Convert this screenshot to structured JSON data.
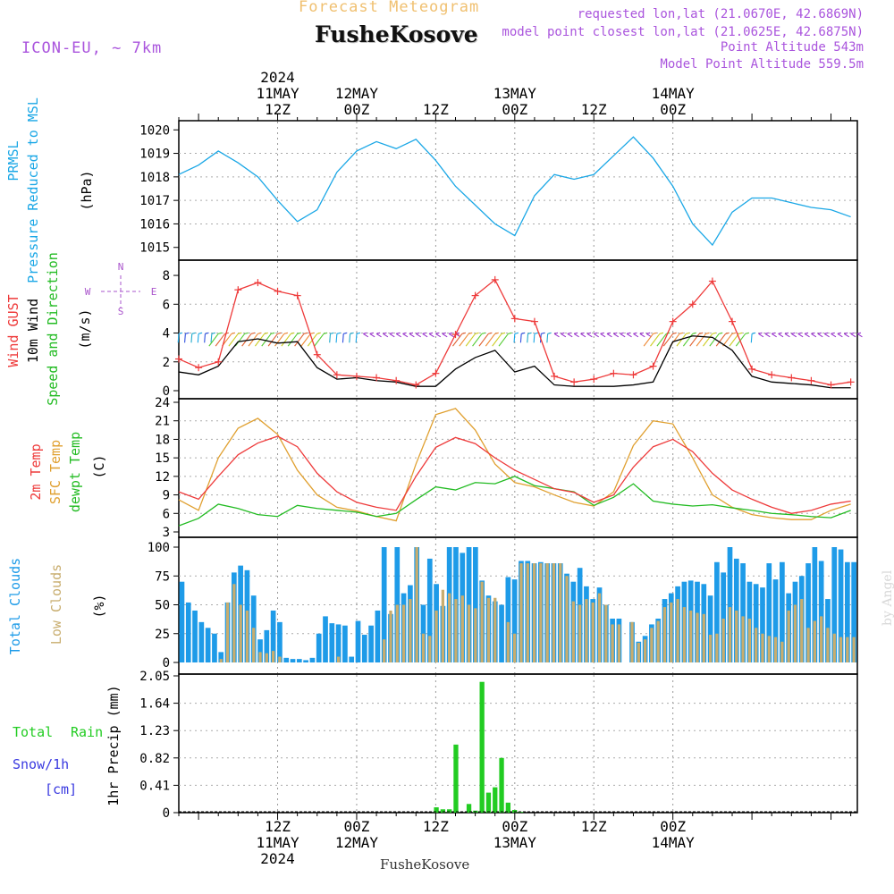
{
  "header": {
    "subtitle": "Forecast Meteogram",
    "title": "FusheKosove",
    "model": "ICON-EU, ~ 7km",
    "requested": "requested lon,lat (21.0670E, 42.6869N)",
    "closest": "model point closest lon,lat (21.0625E, 42.6875N)",
    "point_alt": "Point Altitude 543m",
    "model_alt": "Model Point Altitude 559.5m",
    "footer": "FusheKosove",
    "watermark": "by Angel"
  },
  "time_axis": {
    "top": [
      {
        "l1": "2024",
        "l2": "11MAY",
        "l3": "12Z"
      },
      {
        "l1": "",
        "l2": "12MAY",
        "l3": "00Z"
      },
      {
        "l1": "",
        "l2": "",
        "l3": "12Z"
      },
      {
        "l1": "",
        "l2": "13MAY",
        "l3": "00Z"
      },
      {
        "l1": "",
        "l2": "",
        "l3": "12Z"
      },
      {
        "l1": "",
        "l2": "14MAY",
        "l3": "00Z"
      }
    ],
    "bottom": [
      {
        "l1": "12Z",
        "l2": "11MAY",
        "l3": "2024"
      },
      {
        "l1": "00Z",
        "l2": "12MAY",
        "l3": ""
      },
      {
        "l1": "12Z",
        "l2": "",
        "l3": ""
      },
      {
        "l1": "00Z",
        "l2": "13MAY",
        "l3": ""
      },
      {
        "l1": "12Z",
        "l2": "",
        "l3": ""
      },
      {
        "l1": "00Z",
        "l2": "14MAY",
        "l3": ""
      }
    ]
  },
  "colors": {
    "pressure": "#1aa7e6",
    "gust": "#ee3a3a",
    "wind": "#000000",
    "dir": "#22bb22",
    "temp2m": "#ee3a3a",
    "sfc": "#e0a030",
    "dewpt": "#22bb22",
    "total_clouds": "#1e9be8",
    "low_clouds": "#c8ad6e",
    "rain": "#22cc22",
    "snow": "#3a3ae0",
    "compass": "#aa55cc",
    "header_purple": "#aa55dd",
    "subtitle": "#f0c070"
  },
  "chart_data": [
    {
      "type": "line",
      "panel": "pressure",
      "ylabel_lines": [
        "PRMSL",
        "Pressure Reduced to MSL"
      ],
      "unit": "(hPa)",
      "ylim": [
        1014.8,
        1020.2
      ],
      "ticks": [
        "1015",
        "1016",
        "1017",
        "1018",
        "1019",
        "1020"
      ],
      "grid": true,
      "series": [
        {
          "hours": [
            0,
            3,
            6,
            9,
            12,
            15,
            18,
            21,
            24,
            27,
            30,
            33,
            36,
            39,
            42,
            45,
            48,
            51,
            54,
            57,
            60,
            63,
            66,
            69,
            72,
            75,
            78,
            81,
            84,
            87,
            90,
            93,
            96,
            99,
            102
          ],
          "values": [
            1018.1,
            1018.5,
            1019.1,
            1018.6,
            1018.0,
            1017.0,
            1016.1,
            1016.6,
            1018.2,
            1019.1,
            1019.5,
            1019.2,
            1019.6,
            1018.7,
            1017.6,
            1016.8,
            1016.0,
            1015.5,
            1017.2,
            1018.1,
            1017.9,
            1018.1,
            1018.9,
            1019.7,
            1018.8,
            1017.6,
            1016.0,
            1015.1,
            1016.5,
            1017.1,
            1017.1,
            1016.9,
            1016.7,
            1016.6,
            1016.3
          ]
        }
      ]
    },
    {
      "type": "line",
      "panel": "wind",
      "ylabel_lines": [
        "Wind GUST",
        "10m Wind",
        "Speed and Direction"
      ],
      "unit": "(m/s)",
      "compass": {
        "n": "N",
        "s": "S",
        "w": "W",
        "e": "E"
      },
      "ylim": [
        0,
        8.5
      ],
      "ticks": [
        "0",
        "2",
        "4",
        "6",
        "8"
      ],
      "grid": true,
      "series": [
        {
          "hours": [
            0,
            3,
            6,
            9,
            12,
            15,
            18,
            21,
            24,
            27,
            30,
            33,
            36,
            39,
            42,
            45,
            48,
            51,
            54,
            57,
            60,
            63,
            66,
            69,
            72,
            75,
            78,
            81,
            84,
            87,
            90,
            93,
            96,
            99,
            102
          ],
          "values": [
            2.2,
            1.6,
            2.0,
            7.0,
            7.5,
            6.9,
            6.6,
            2.5,
            1.1,
            1.0,
            0.9,
            0.7,
            0.4,
            1.2,
            3.9,
            6.6,
            7.7,
            5.0,
            4.8,
            1.0,
            0.6,
            0.8,
            1.2,
            1.1,
            1.7,
            4.8,
            6.0,
            7.6,
            4.8,
            1.5,
            1.1,
            0.9,
            0.7,
            0.4,
            0.6
          ]
        },
        {
          "hours": [
            0,
            3,
            6,
            9,
            12,
            15,
            18,
            21,
            24,
            27,
            30,
            33,
            36,
            39,
            42,
            45,
            48,
            51,
            54,
            57,
            60,
            63,
            66,
            69,
            72,
            75,
            78,
            81,
            84,
            87,
            90,
            93,
            96,
            99,
            102
          ],
          "values": [
            1.3,
            1.1,
            1.7,
            3.4,
            3.6,
            3.3,
            3.4,
            1.6,
            0.8,
            0.9,
            0.7,
            0.6,
            0.3,
            0.3,
            1.5,
            2.3,
            2.8,
            1.3,
            1.7,
            0.4,
            0.3,
            0.3,
            0.3,
            0.4,
            0.6,
            3.4,
            3.8,
            3.7,
            2.8,
            1.0,
            0.6,
            0.5,
            0.4,
            0.2,
            0.2
          ]
        }
      ]
    },
    {
      "type": "line",
      "panel": "temperature",
      "ylabel_lines": [
        "2m Temp",
        "SFC Temp",
        "dewpt Temp"
      ],
      "unit": "(C)",
      "ylim": [
        3,
        24
      ],
      "ticks": [
        "3",
        "6",
        "9",
        "12",
        "15",
        "18",
        "21",
        "24"
      ],
      "grid": true,
      "series": [
        {
          "hours": [
            0,
            3,
            6,
            9,
            12,
            15,
            18,
            21,
            24,
            27,
            30,
            33,
            36,
            39,
            42,
            45,
            48,
            51,
            54,
            57,
            60,
            63,
            66,
            69,
            72,
            75,
            78,
            81,
            84,
            87,
            90,
            93,
            96,
            99,
            102
          ],
          "values": [
            9.5,
            8.3,
            12.0,
            15.5,
            17.4,
            18.5,
            16.8,
            12.5,
            9.5,
            7.8,
            7.0,
            6.5,
            12.0,
            16.7,
            18.3,
            17.3,
            15.0,
            13.0,
            11.5,
            10.0,
            9.4,
            7.8,
            9.0,
            13.5,
            16.8,
            18.0,
            16.0,
            12.5,
            9.8,
            8.3,
            7.0,
            6.0,
            6.5,
            7.5,
            8.0
          ]
        },
        {
          "hours": [
            0,
            3,
            6,
            9,
            12,
            15,
            18,
            21,
            24,
            27,
            30,
            33,
            36,
            39,
            42,
            45,
            48,
            51,
            54,
            57,
            60,
            63,
            66,
            69,
            72,
            75,
            78,
            81,
            84,
            87,
            90,
            93,
            96,
            99,
            102
          ],
          "values": [
            8.2,
            6.5,
            15.0,
            19.8,
            21.4,
            18.8,
            13.0,
            9.0,
            7.0,
            6.4,
            5.5,
            4.8,
            14.0,
            22.0,
            23.0,
            19.5,
            14.0,
            11.0,
            10.3,
            9.0,
            7.8,
            7.2,
            9.5,
            17.0,
            21.0,
            20.5,
            15.0,
            9.0,
            7.0,
            5.8,
            5.3,
            5.0,
            5.0,
            6.5,
            7.5
          ]
        },
        {
          "hours": [
            0,
            3,
            6,
            9,
            12,
            15,
            18,
            21,
            24,
            27,
            30,
            33,
            36,
            39,
            42,
            45,
            48,
            51,
            54,
            57,
            60,
            63,
            66,
            69,
            72,
            75,
            78,
            81,
            84,
            87,
            90,
            93,
            96,
            99,
            102
          ],
          "values": [
            4.0,
            5.2,
            7.5,
            6.8,
            5.8,
            5.5,
            7.3,
            6.8,
            6.5,
            6.2,
            5.5,
            6.0,
            8.2,
            10.3,
            9.8,
            11.0,
            10.8,
            12.0,
            10.5,
            10.0,
            9.5,
            7.3,
            8.6,
            10.8,
            8.0,
            7.5,
            7.2,
            7.4,
            6.9,
            6.5,
            6.0,
            5.8,
            5.5,
            5.3,
            6.5
          ]
        }
      ]
    },
    {
      "type": "bar",
      "panel": "clouds",
      "ylabel_lines": [
        "Total Clouds",
        "Low Clouds"
      ],
      "unit": "(%)",
      "ylim": [
        0,
        100
      ],
      "ticks": [
        "0",
        "25",
        "50",
        "75",
        "100"
      ],
      "grid": true,
      "series": [
        {
          "hours": [
            0,
            1,
            2,
            3,
            4,
            5,
            6,
            7,
            8,
            9,
            10,
            11,
            12,
            13,
            14,
            15,
            16,
            17,
            18,
            19,
            20,
            21,
            22,
            23,
            24,
            25,
            26,
            27,
            28,
            29,
            30,
            31,
            32,
            33,
            34,
            35,
            36,
            37,
            38,
            39,
            40,
            41,
            42,
            43,
            44,
            45,
            46,
            47,
            48,
            49,
            50,
            51,
            52,
            53,
            54,
            55,
            56,
            57,
            58,
            59,
            60,
            61,
            62,
            63,
            64,
            65,
            66,
            67,
            68,
            69,
            70,
            71,
            72,
            73,
            74,
            75,
            76,
            77,
            78,
            79,
            80,
            81,
            82,
            83,
            84,
            85,
            86,
            87,
            88,
            89,
            90,
            91,
            92,
            93,
            94,
            95,
            96,
            97,
            98,
            99,
            100,
            101,
            102,
            103
          ],
          "values": [
            70,
            52,
            45,
            35,
            30,
            25,
            9,
            52,
            78,
            84,
            80,
            58,
            20,
            28,
            45,
            35,
            4,
            3,
            3,
            2,
            4,
            25,
            40,
            34,
            33,
            32,
            5,
            36,
            24,
            32,
            45,
            100,
            42,
            100,
            60,
            67,
            100,
            50,
            90,
            68,
            49,
            100,
            100,
            95,
            100,
            100,
            71,
            58,
            53,
            50,
            74,
            72,
            88,
            88,
            86,
            87,
            86,
            86,
            86,
            77,
            70,
            82,
            66,
            55,
            65,
            50,
            38,
            38,
            0,
            35,
            18,
            23,
            33,
            38,
            55,
            60,
            66,
            70,
            71,
            70,
            68,
            58,
            87,
            78,
            100,
            90,
            86,
            70,
            68,
            65,
            86,
            72,
            87,
            60,
            70,
            75,
            86,
            100,
            88,
            55,
            100,
            98,
            87,
            87
          ]
        },
        {
          "hours": [
            0,
            1,
            2,
            3,
            4,
            5,
            6,
            7,
            8,
            9,
            10,
            11,
            12,
            13,
            14,
            15,
            16,
            17,
            18,
            19,
            20,
            21,
            22,
            23,
            24,
            25,
            26,
            27,
            28,
            29,
            30,
            31,
            32,
            33,
            34,
            35,
            36,
            37,
            38,
            39,
            40,
            41,
            42,
            43,
            44,
            45,
            46,
            47,
            48,
            49,
            50,
            51,
            52,
            53,
            54,
            55,
            56,
            57,
            58,
            59,
            60,
            61,
            62,
            63,
            64,
            65,
            66,
            67,
            68,
            69,
            70,
            71,
            72,
            73,
            74,
            75,
            76,
            77,
            78,
            79,
            80,
            81,
            82,
            83,
            84,
            85,
            86,
            87,
            88,
            89,
            90,
            91,
            92,
            93,
            94,
            95,
            96,
            97,
            98,
            99,
            100,
            101,
            102,
            103
          ],
          "values": [
            0,
            0,
            0,
            0,
            0,
            0,
            3,
            52,
            68,
            50,
            45,
            30,
            9,
            8,
            10,
            5,
            0,
            0,
            0,
            0,
            0,
            0,
            0,
            0,
            5,
            0,
            0,
            0,
            0,
            0,
            0,
            20,
            45,
            50,
            50,
            55,
            100,
            25,
            23,
            45,
            63,
            60,
            55,
            58,
            50,
            47,
            70,
            56,
            56,
            0,
            35,
            25,
            86,
            86,
            86,
            86,
            86,
            86,
            86,
            75,
            53,
            50,
            55,
            52,
            60,
            50,
            33,
            33,
            0,
            35,
            17,
            20,
            30,
            36,
            48,
            52,
            55,
            48,
            45,
            43,
            42,
            24,
            25,
            38,
            48,
            45,
            40,
            38,
            30,
            25,
            23,
            22,
            18,
            45,
            50,
            55,
            30,
            36,
            40,
            30,
            25,
            22,
            22,
            22
          ]
        }
      ]
    },
    {
      "type": "bar",
      "panel": "precip",
      "ylabel_lines": [
        "1hr Precip (mm)"
      ],
      "side_labels": {
        "total": "Total",
        "rain": "Rain",
        "snow": "Snow/1h",
        "unit": "[cm]"
      },
      "ylim": [
        0,
        2.05
      ],
      "ticks": [
        "0",
        "0.41",
        "0.82",
        "1.23",
        "1.64",
        "2.05"
      ],
      "grid": true,
      "series": [
        {
          "hours": [
            39,
            40,
            41,
            42,
            44,
            45,
            46,
            47,
            48,
            49,
            50,
            51,
            52
          ],
          "values": [
            0.08,
            0.05,
            0.05,
            1.02,
            0.13,
            0.03,
            1.96,
            0.3,
            0.38,
            0.82,
            0.15,
            0.04,
            0.01
          ]
        }
      ]
    }
  ]
}
